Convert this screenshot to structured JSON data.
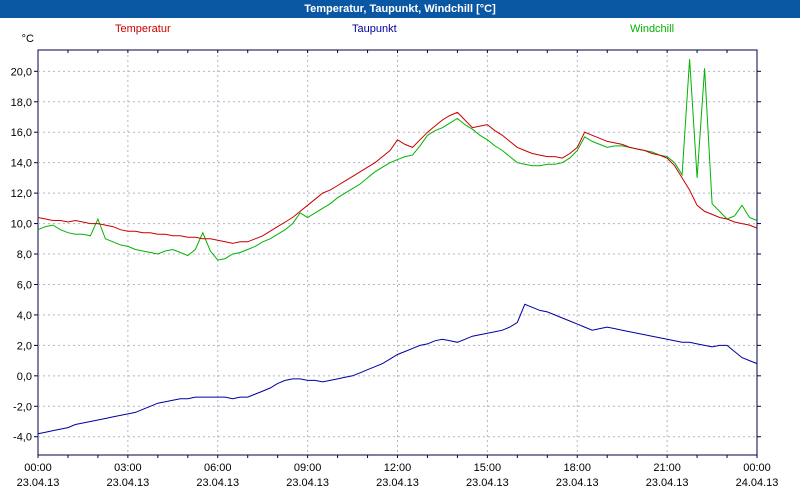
{
  "window": {
    "title": "Temperatur, Taupunkt, Windchill [°C]"
  },
  "colors": {
    "titlebar": "#0a57a4",
    "frame": "#000040",
    "grid": "#b4b4c8",
    "temperatur": "#c80000",
    "taupunkt": "#0000a0",
    "windchill": "#00b400"
  },
  "chart_data": {
    "type": "line",
    "title": "Temperatur, Taupunkt, Windchill [°C]",
    "y_unit": "°C",
    "grid": "dashed",
    "legend_position": "top",
    "xlim": [
      0,
      24
    ],
    "ylim": [
      -5.2,
      21.4
    ],
    "x_start_hour": 0,
    "x_interval_hours": 0.25,
    "y_ticks": [
      {
        "value": 20,
        "label": "20,0"
      },
      {
        "value": 18,
        "label": "18,0"
      },
      {
        "value": 16,
        "label": "16,0"
      },
      {
        "value": 14,
        "label": "14,0"
      },
      {
        "value": 12,
        "label": "12,0"
      },
      {
        "value": 10,
        "label": "10,0"
      },
      {
        "value": 8,
        "label": "8,0"
      },
      {
        "value": 6,
        "label": "6,0"
      },
      {
        "value": 4,
        "label": "4,0"
      },
      {
        "value": 2,
        "label": "2,0"
      },
      {
        "value": 0,
        "label": "0,0"
      },
      {
        "value": -2,
        "label": "-2,0"
      },
      {
        "value": -4,
        "label": "-4,0"
      }
    ],
    "x_ticks": [
      {
        "hour": 0,
        "time": "00:00",
        "date": "23.04.13"
      },
      {
        "hour": 3,
        "time": "03:00",
        "date": "23.04.13"
      },
      {
        "hour": 6,
        "time": "06:00",
        "date": "23.04.13"
      },
      {
        "hour": 9,
        "time": "09:00",
        "date": "23.04.13"
      },
      {
        "hour": 12,
        "time": "12:00",
        "date": "23.04.13"
      },
      {
        "hour": 15,
        "time": "15:00",
        "date": "23.04.13"
      },
      {
        "hour": 18,
        "time": "18:00",
        "date": "23.04.13"
      },
      {
        "hour": 21,
        "time": "21:00",
        "date": "23.04.13"
      },
      {
        "hour": 24,
        "time": "00:00",
        "date": "24.04.13"
      }
    ],
    "series": [
      {
        "name": "Temperatur",
        "color": "#c80000",
        "values": [
          10.4,
          10.3,
          10.2,
          10.2,
          10.1,
          10.2,
          10.1,
          10.0,
          10.0,
          9.9,
          9.8,
          9.6,
          9.5,
          9.5,
          9.4,
          9.4,
          9.3,
          9.3,
          9.2,
          9.2,
          9.1,
          9.1,
          9.0,
          9.0,
          8.9,
          8.8,
          8.7,
          8.8,
          8.8,
          9.0,
          9.2,
          9.5,
          9.8,
          10.1,
          10.4,
          10.8,
          11.2,
          11.6,
          12.0,
          12.2,
          12.5,
          12.8,
          13.1,
          13.4,
          13.7,
          14.0,
          14.4,
          14.8,
          15.5,
          15.2,
          15.0,
          15.5,
          16.0,
          16.4,
          16.8,
          17.1,
          17.3,
          16.8,
          16.3,
          16.4,
          16.5,
          16.1,
          15.8,
          15.4,
          15.0,
          14.8,
          14.6,
          14.5,
          14.4,
          14.4,
          14.3,
          14.6,
          15.0,
          16.0,
          15.8,
          15.6,
          15.4,
          15.3,
          15.2,
          15.0,
          14.9,
          14.8,
          14.6,
          14.5,
          14.3,
          13.8,
          13.0,
          12.2,
          11.2,
          10.8,
          10.6,
          10.4,
          10.3,
          10.1,
          10.0,
          9.9,
          9.7
        ]
      },
      {
        "name": "Taupunkt",
        "color": "#0000a0",
        "values": [
          -3.8,
          -3.7,
          -3.6,
          -3.5,
          -3.4,
          -3.2,
          -3.1,
          -3.0,
          -2.9,
          -2.8,
          -2.7,
          -2.6,
          -2.5,
          -2.4,
          -2.2,
          -2.0,
          -1.8,
          -1.7,
          -1.6,
          -1.5,
          -1.5,
          -1.4,
          -1.4,
          -1.4,
          -1.4,
          -1.4,
          -1.5,
          -1.4,
          -1.4,
          -1.2,
          -1.0,
          -0.8,
          -0.5,
          -0.3,
          -0.2,
          -0.2,
          -0.3,
          -0.3,
          -0.4,
          -0.3,
          -0.2,
          -0.1,
          0.0,
          0.2,
          0.4,
          0.6,
          0.8,
          1.1,
          1.4,
          1.6,
          1.8,
          2.0,
          2.1,
          2.3,
          2.4,
          2.3,
          2.2,
          2.4,
          2.6,
          2.7,
          2.8,
          2.9,
          3.0,
          3.2,
          3.5,
          4.7,
          4.5,
          4.3,
          4.2,
          4.0,
          3.8,
          3.6,
          3.4,
          3.2,
          3.0,
          3.1,
          3.2,
          3.1,
          3.0,
          2.9,
          2.8,
          2.7,
          2.6,
          2.5,
          2.4,
          2.3,
          2.2,
          2.2,
          2.1,
          2.0,
          1.9,
          2.0,
          2.0,
          1.6,
          1.2,
          1.0,
          0.8
        ]
      },
      {
        "name": "Windchill",
        "color": "#00b400",
        "values": [
          9.6,
          9.8,
          9.9,
          9.6,
          9.4,
          9.3,
          9.3,
          9.2,
          10.3,
          9.0,
          8.8,
          8.6,
          8.5,
          8.3,
          8.2,
          8.1,
          8.0,
          8.2,
          8.3,
          8.1,
          7.9,
          8.3,
          9.4,
          8.2,
          7.6,
          7.7,
          8.0,
          8.1,
          8.3,
          8.5,
          8.8,
          9.0,
          9.3,
          9.6,
          10.0,
          10.7,
          10.4,
          10.7,
          11.0,
          11.3,
          11.7,
          12.0,
          12.3,
          12.6,
          13.0,
          13.4,
          13.7,
          14.0,
          14.2,
          14.4,
          14.5,
          15.1,
          15.8,
          16.1,
          16.3,
          16.6,
          16.9,
          16.5,
          16.2,
          15.8,
          15.5,
          15.1,
          14.8,
          14.4,
          14.0,
          13.9,
          13.8,
          13.8,
          13.9,
          13.9,
          14.0,
          14.3,
          14.8,
          15.7,
          15.4,
          15.2,
          15.0,
          15.1,
          15.1,
          15.0,
          14.9,
          14.8,
          14.7,
          14.5,
          14.4,
          14.0,
          13.2,
          20.8,
          13.0,
          20.2,
          11.3,
          10.8,
          10.3,
          10.5,
          11.2,
          10.4,
          10.2
        ]
      }
    ]
  }
}
